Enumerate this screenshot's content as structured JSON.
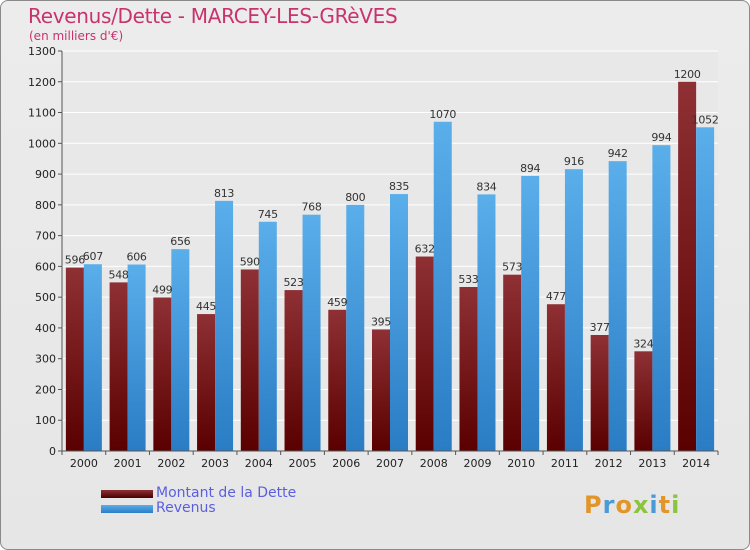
{
  "title": "Revenus/Dette - MARCEY-LES-GRèVES",
  "subtitle": "(en milliers d'€)",
  "logo": {
    "text": "Proxiti"
  },
  "colors": {
    "dette": "#7a1a1c",
    "revenus": "#3a98e0",
    "title": "#c8336e",
    "legend_text": "#5a5fe0"
  },
  "chart_data": {
    "type": "bar",
    "categories": [
      "2000",
      "2001",
      "2002",
      "2003",
      "2004",
      "2005",
      "2006",
      "2007",
      "2008",
      "2009",
      "2010",
      "2011",
      "2012",
      "2013",
      "2014"
    ],
    "series": [
      {
        "name": "Montant de la Dette",
        "values": [
          596,
          548,
          499,
          445,
          590,
          523,
          459,
          395,
          632,
          533,
          573,
          477,
          377,
          324,
          1200
        ]
      },
      {
        "name": "Revenus",
        "values": [
          607,
          606,
          656,
          813,
          745,
          768,
          800,
          835,
          1070,
          834,
          894,
          916,
          942,
          994,
          1052
        ]
      }
    ],
    "yticks": [
      0,
      100,
      200,
      300,
      400,
      500,
      600,
      700,
      800,
      900,
      1000,
      1100,
      1200,
      1300
    ],
    "ylim": [
      0,
      1300
    ],
    "grid": true,
    "legend_position": "bottom-left"
  }
}
